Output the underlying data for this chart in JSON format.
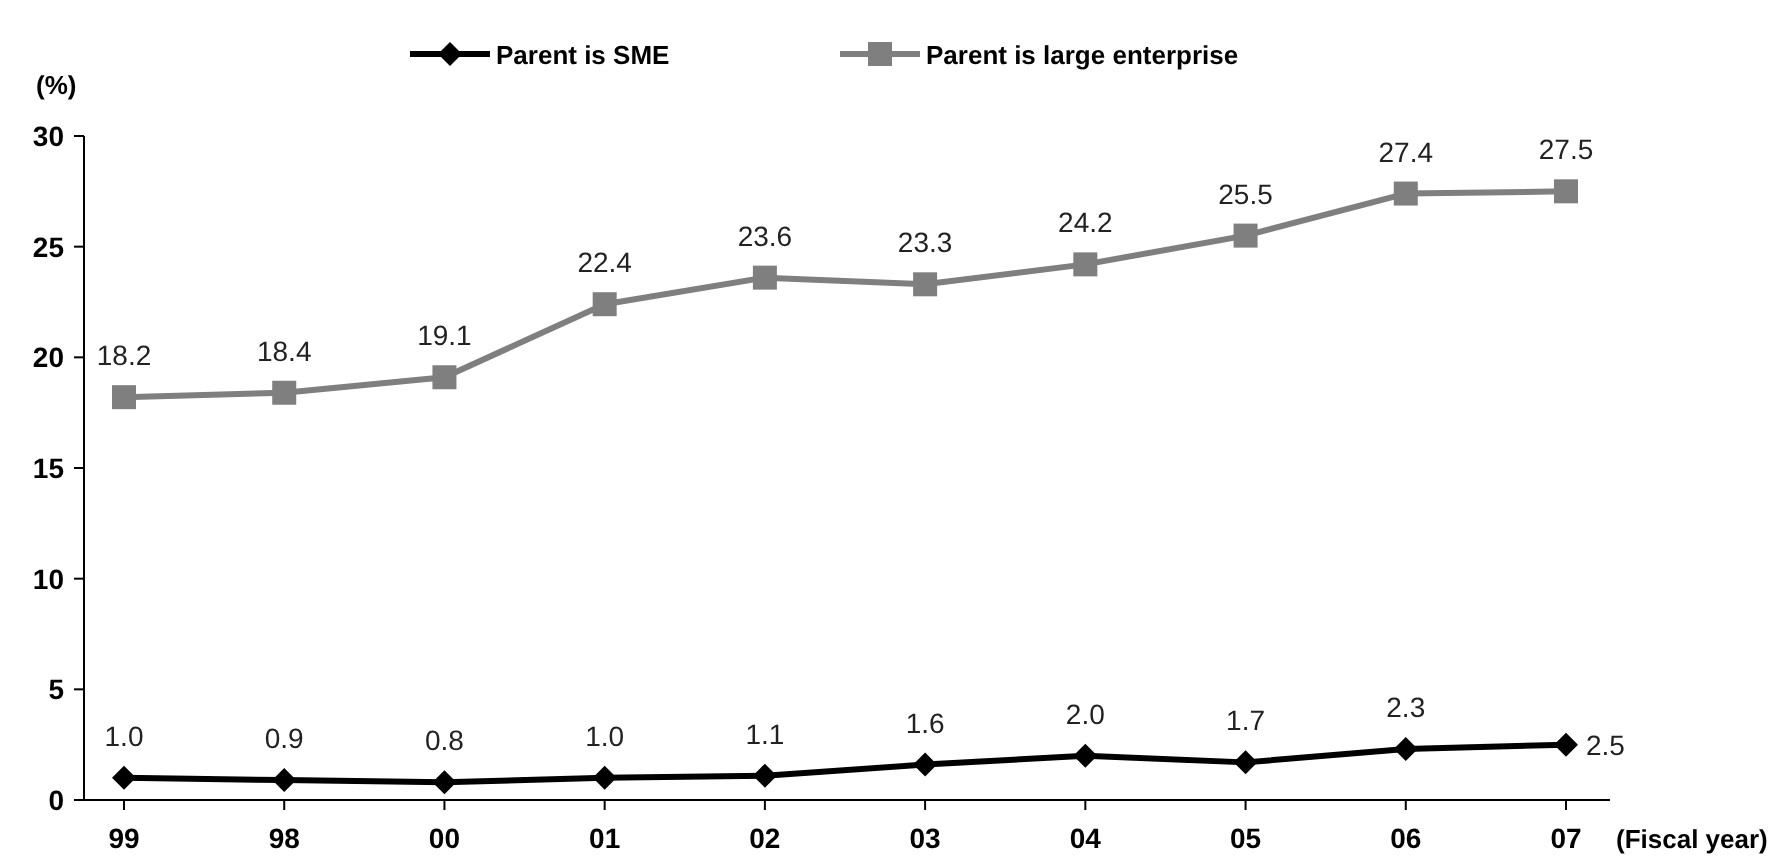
{
  "chart_data": {
    "type": "line",
    "ylabel": "(%)",
    "xlabel": "(Fiscal year)",
    "categories": [
      "99",
      "98",
      "00",
      "01",
      "02",
      "03",
      "04",
      "05",
      "06",
      "07"
    ],
    "ylim": [
      0,
      30
    ],
    "yticks": [
      0,
      5,
      10,
      15,
      20,
      25,
      30
    ],
    "grid": false,
    "legend": "top",
    "series": [
      {
        "name": "Parent is SME",
        "color": "#000000",
        "marker": "diamond",
        "values": [
          1.0,
          0.9,
          0.8,
          1.0,
          1.1,
          1.6,
          2.0,
          1.7,
          2.3,
          2.5
        ],
        "value_labels": [
          "1.0",
          "0.9",
          "0.8",
          "1.0",
          "1.1",
          "1.6",
          "2.0",
          "1.7",
          "2.3",
          "2.5"
        ]
      },
      {
        "name": "Parent is large enterprise",
        "color": "#7f7f7f",
        "marker": "square",
        "values": [
          18.2,
          18.4,
          19.1,
          22.4,
          23.6,
          23.3,
          24.2,
          25.5,
          27.4,
          27.5
        ],
        "value_labels": [
          "18.2",
          "18.4",
          "19.1",
          "22.4",
          "23.6",
          "23.3",
          "24.2",
          "25.5",
          "27.4",
          "27.5"
        ]
      }
    ]
  }
}
